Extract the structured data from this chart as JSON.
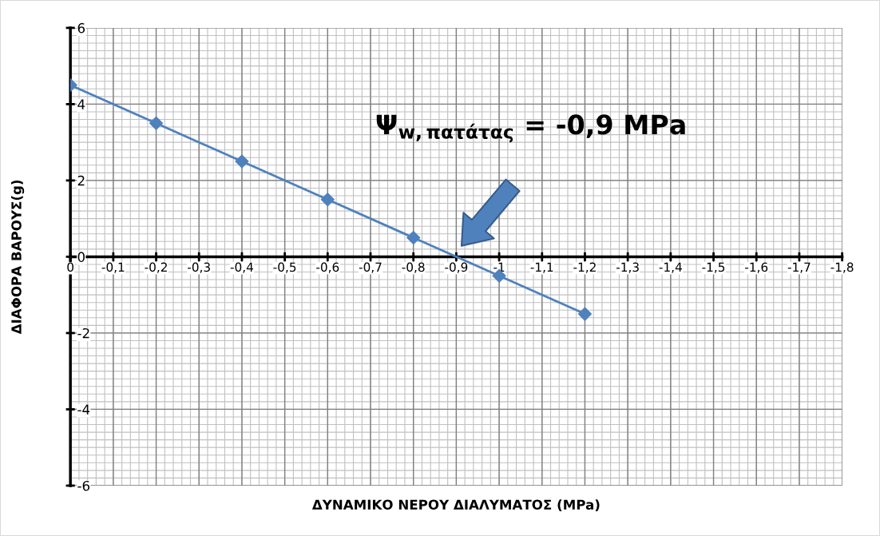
{
  "chart_data": {
    "type": "line",
    "xlabel": "ΔΥΝΑΜΙΚΟ ΝΕΡΟΥ ΔΙΑΛΥΜΑΤΟΣ (MPa)",
    "ylabel": "ΔΙΑΦΟΡΑ ΒΑΡΟΥΣ(g)",
    "x": [
      0,
      -0.2,
      -0.4,
      -0.6,
      -0.8,
      -1,
      -1.2
    ],
    "series": [
      {
        "color": "#4f81bd",
        "values": [
          4.5,
          3.5,
          2.5,
          1.5,
          0.5,
          -0.5,
          -1.5
        ]
      }
    ],
    "xlim": [
      0,
      -1.8
    ],
    "xticks": [
      {
        "value": 0,
        "label": "0"
      },
      {
        "value": -0.1,
        "label": "-0,1"
      },
      {
        "value": -0.2,
        "label": "-0,2"
      },
      {
        "value": -0.3,
        "label": "-0,3"
      },
      {
        "value": -0.4,
        "label": "-0,4"
      },
      {
        "value": -0.5,
        "label": "-0,5"
      },
      {
        "value": -0.6,
        "label": "-0,6"
      },
      {
        "value": -0.7,
        "label": "-0,7"
      },
      {
        "value": -0.8,
        "label": "-0,8"
      },
      {
        "value": -0.9,
        "label": "-0,9"
      },
      {
        "value": -1,
        "label": "-1"
      },
      {
        "value": -1.1,
        "label": "-1,1"
      },
      {
        "value": -1.2,
        "label": "-1,2"
      },
      {
        "value": -1.3,
        "label": "-1,3"
      },
      {
        "value": -1.4,
        "label": "-1,4"
      },
      {
        "value": -1.5,
        "label": "-1,5"
      },
      {
        "value": -1.6,
        "label": "-1,6"
      },
      {
        "value": -1.7,
        "label": "-1,7"
      },
      {
        "value": -1.8,
        "label": "-1,8"
      }
    ],
    "ylim": [
      -6,
      6
    ],
    "yticks": [
      {
        "value": -6,
        "label": "-6"
      },
      {
        "value": -4,
        "label": "-4"
      },
      {
        "value": -2,
        "label": "-2"
      },
      0,
      2,
      4,
      6
    ],
    "annotations": [
      "Ψ$_{w,πατάτας}$ = -0,9 MPa"
    ],
    "grid": true,
    "marker": "diamond",
    "line_style": "solid"
  }
}
